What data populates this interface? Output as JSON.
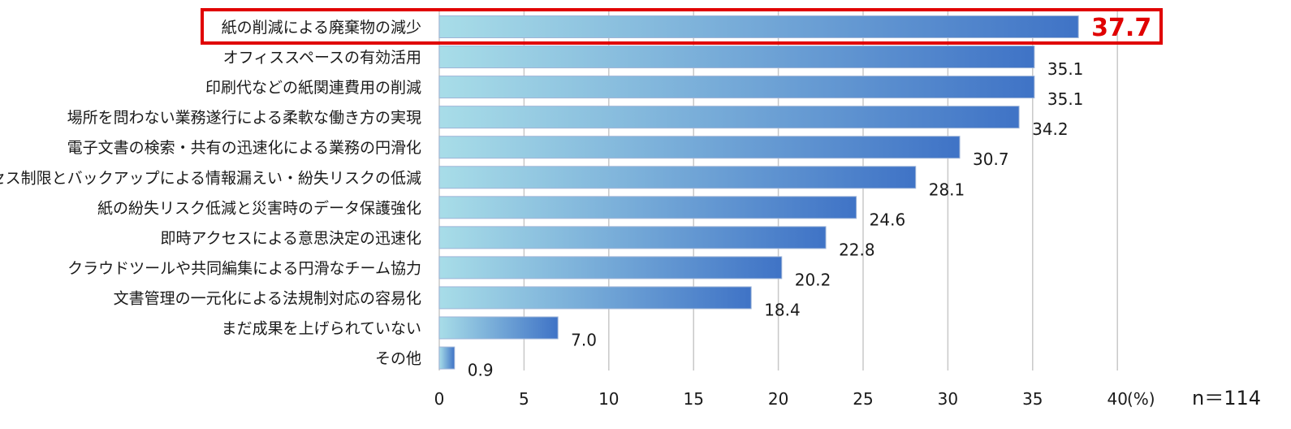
{
  "chart_data": {
    "type": "bar",
    "orientation": "horizontal",
    "categories": [
      "紙の削減による廃棄物の減少",
      "オフィススペースの有効活用",
      "印刷代などの紙関連費用の削減",
      "場所を問わない業務遂行による柔軟な働き方の実現",
      "電子文書の検索・共有の迅速化による業務の円滑化",
      "アクセス制限とバックアップによる情報漏えい・紛失リスクの低減",
      "紙の紛失リスク低減と災害時のデータ保護強化",
      "即時アクセスによる意思決定の迅速化",
      "クラウドツールや共同編集による円滑なチーム協力",
      "文書管理の一元化による法規制対応の容易化",
      "まだ成果を上げられていない",
      "その他"
    ],
    "values": [
      37.7,
      35.1,
      35.1,
      34.2,
      30.7,
      28.1,
      24.6,
      22.8,
      20.2,
      18.4,
      7.0,
      0.9
    ],
    "value_labels": [
      "37.7",
      "35.1",
      "35.1",
      "34.2",
      "30.7",
      "28.1",
      "24.6",
      "22.8",
      "20.2",
      "18.4",
      "7.0",
      "0.9"
    ],
    "xlim": [
      0,
      40
    ],
    "xticks": [
      "0",
      "5",
      "10",
      "15",
      "20",
      "25",
      "30",
      "35",
      "40"
    ],
    "xtick_values": [
      0,
      5,
      10,
      15,
      20,
      25,
      30,
      35,
      40
    ],
    "unit_label": "(%)",
    "sample_size": "n＝114",
    "highlight_index": 0,
    "grid": "vertical",
    "colors": {
      "bar_start": "#a8dde8",
      "bar_end": "#3f73c6",
      "highlight_border": "#e00000",
      "highlight_value": "#e00000",
      "gridline": "#c8c8c8",
      "text": "#1a1a1a"
    }
  }
}
